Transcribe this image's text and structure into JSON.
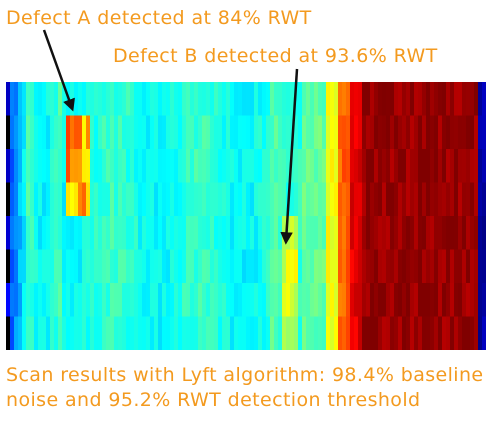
{
  "annotations": {
    "defect_a": "Defect A detected at 84% RWT",
    "defect_b": "Defect B detected at 93.6% RWT"
  },
  "caption": "Scan results with Lyft algorithm: 98.4% baseline noise and 95.2% RWT detection threshold",
  "colors": {
    "text": "#f39a1f",
    "arrow": "#111111",
    "background": "#ffffff",
    "heatmap_high": "#ff0000",
    "heatmap_low": "#00008b"
  },
  "heatmap": {
    "description_type": "ultrasonic thickness scan heatmap, jet colormap",
    "colormap": "jet"
  }
}
